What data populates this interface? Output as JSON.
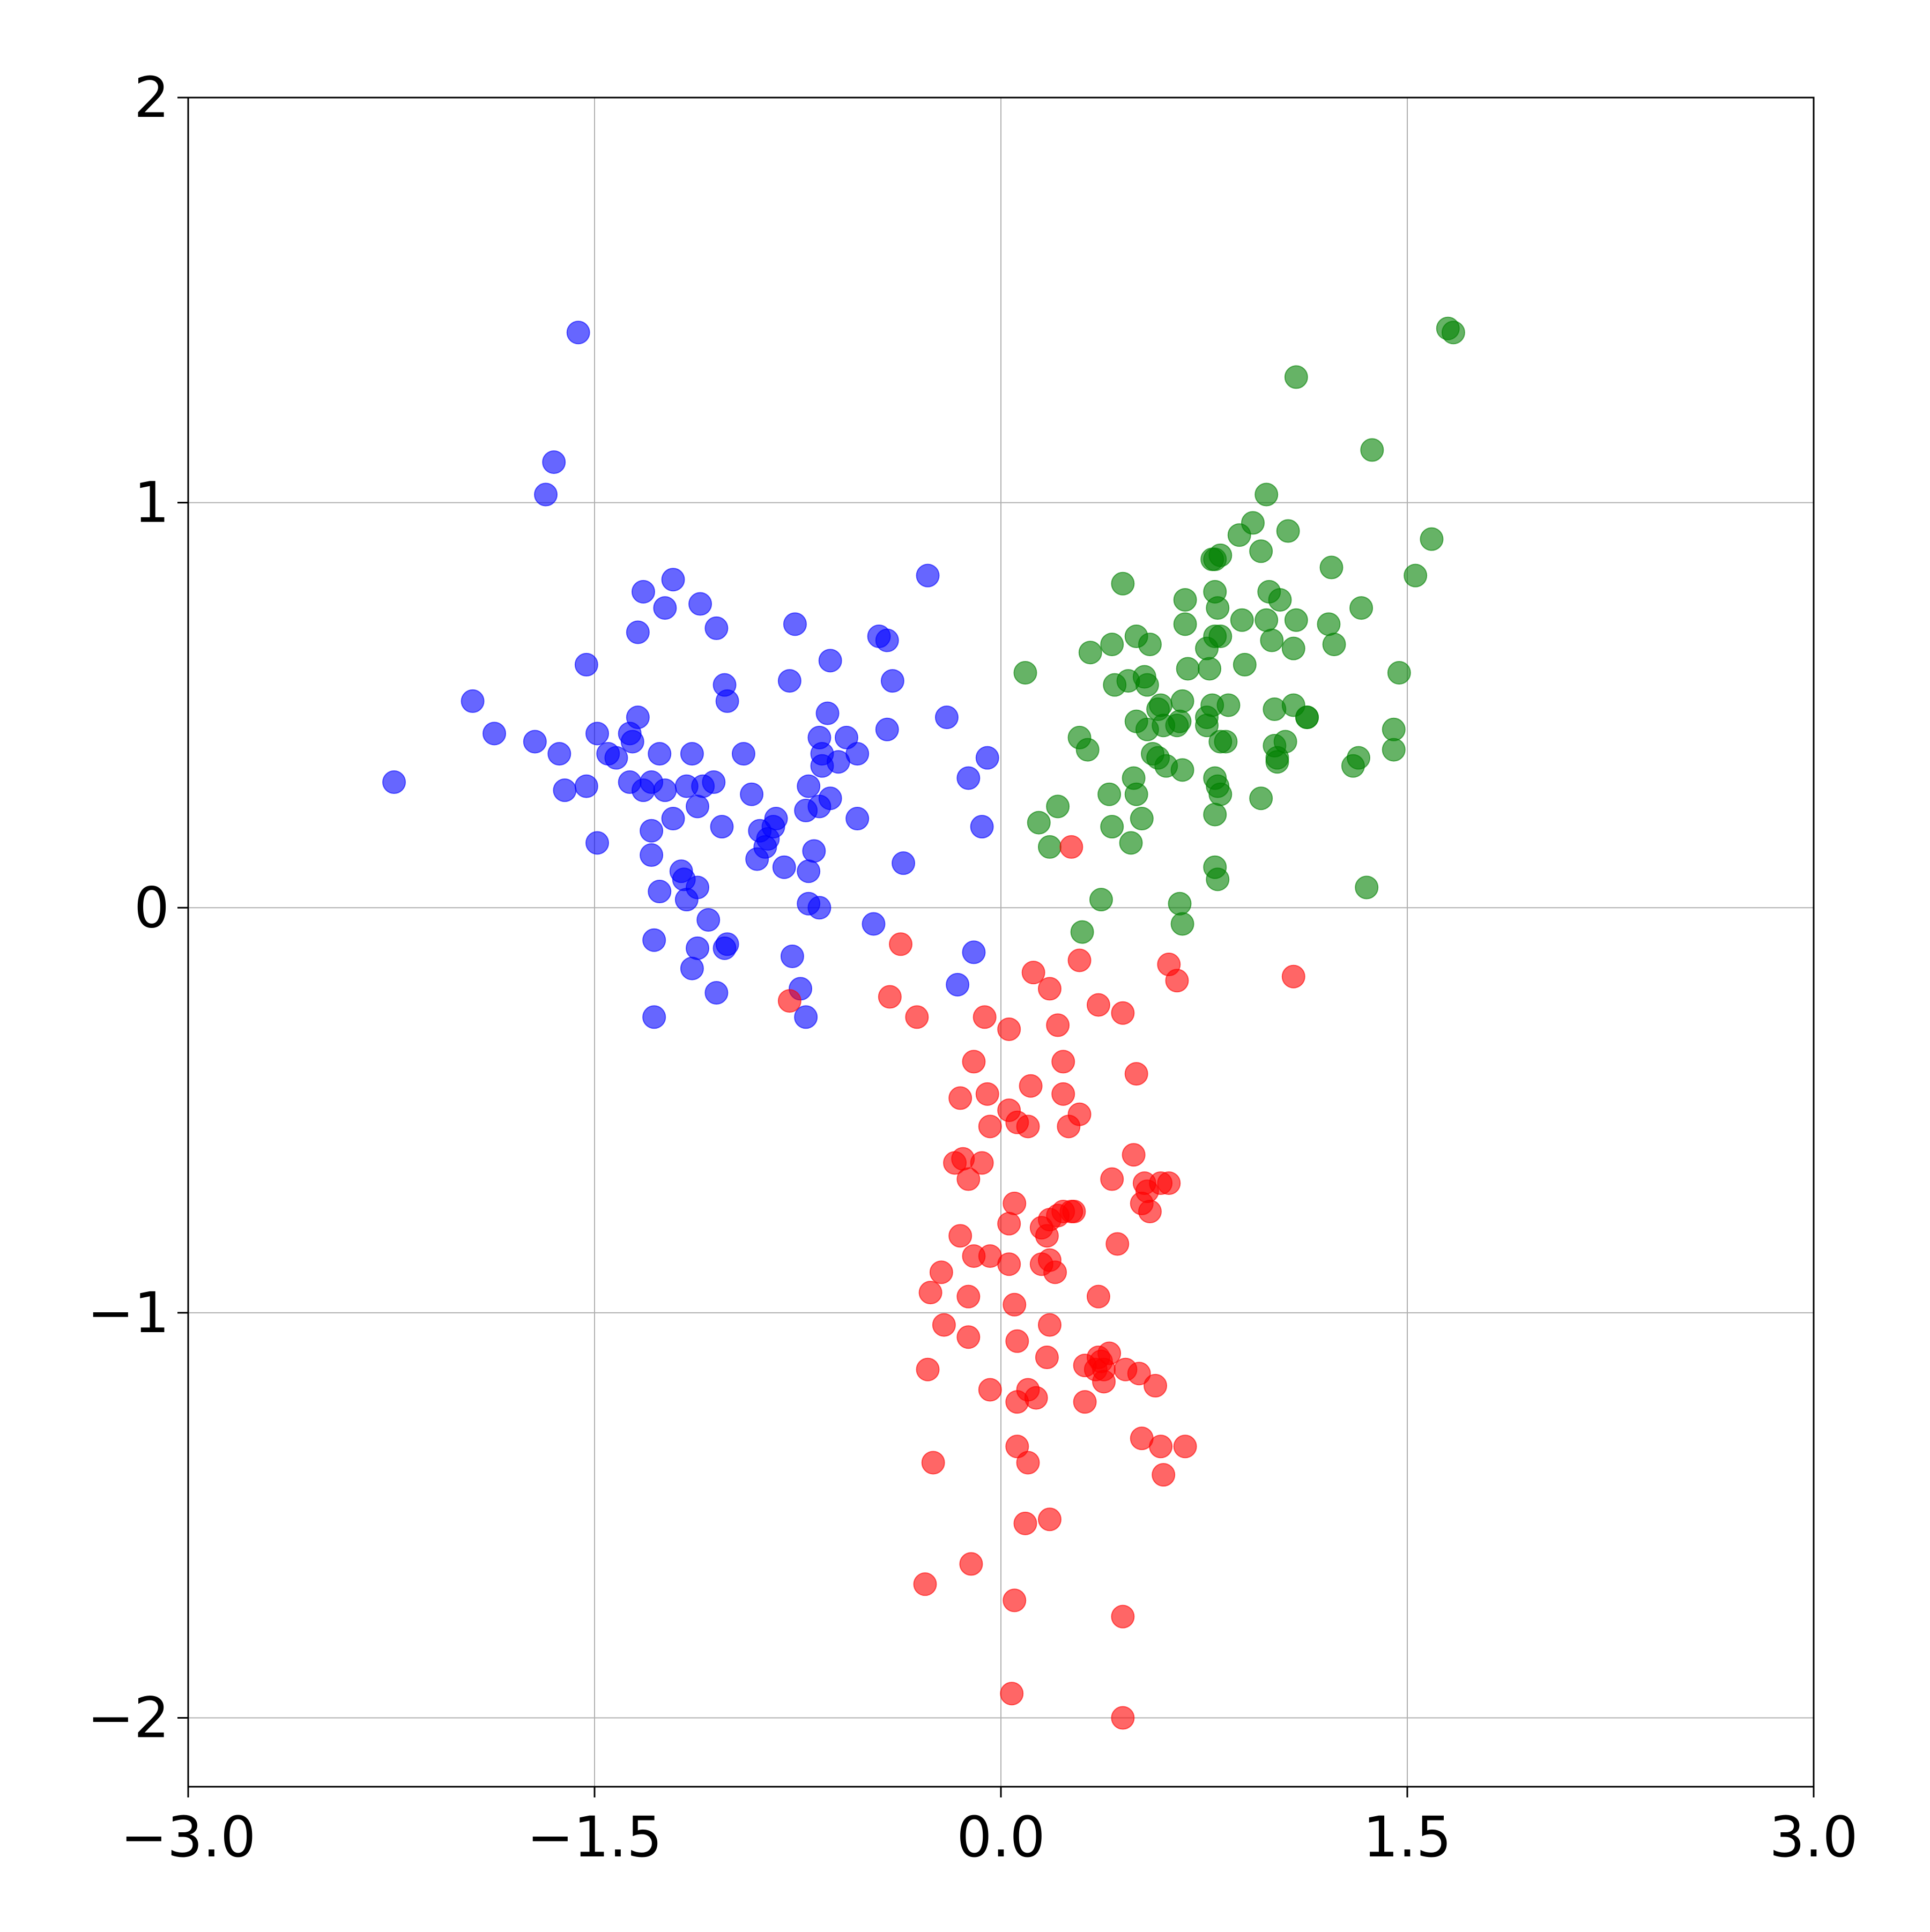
{
  "chart_data": {
    "type": "scatter",
    "xlim": [
      -3,
      3
    ],
    "ylim": [
      -2.17,
      2
    ],
    "xticks": [
      {
        "value": -3,
        "label": "−3.0"
      },
      {
        "value": -1.5,
        "label": "−1.5"
      },
      {
        "value": 0,
        "label": "0.0"
      },
      {
        "value": 1.5,
        "label": "1.5"
      },
      {
        "value": 3,
        "label": "3.0"
      }
    ],
    "yticks": [
      {
        "value": -2,
        "label": "−2"
      },
      {
        "value": -1,
        "label": "−1"
      },
      0,
      1,
      2
    ],
    "grid": true,
    "alpha": 0.6,
    "series": [
      {
        "color": "blue",
        "x": [
          -1.56,
          -1.65,
          -1.68,
          -0.27,
          -1.21,
          -1.32,
          -1.24,
          -1.11,
          -1.05,
          -1.34,
          -0.76,
          -0.45,
          -0.42,
          -1.53,
          -0.63,
          -1.02,
          -0.78,
          -0.4,
          -1.01,
          -1.95,
          -0.2,
          -1.34,
          -0.64,
          -0.42,
          -1.87,
          -1.49,
          -1.37,
          -1.72,
          -1.36,
          -0.67,
          -0.57,
          -1.63,
          -1.45,
          -1.42,
          -1.26,
          -1.14,
          -0.95,
          -0.66,
          -0.53,
          -0.05,
          -0.66,
          -0.6,
          -2.24,
          -0.12,
          -1.53,
          -1.37,
          -1.32,
          -1.29,
          -1.24,
          -1.16,
          -1.1,
          -1.06,
          -0.92,
          -0.71,
          -1.61,
          -0.63,
          -1.12,
          -0.67,
          -0.72,
          -1.21,
          -0.53,
          -0.83,
          -0.84,
          -0.07,
          -1.29,
          -1.03,
          -0.89,
          -0.86,
          -0.87,
          -1.49,
          -0.69,
          -1.29,
          -0.9,
          -0.36,
          -0.8,
          -1.18,
          -0.71,
          -1.17,
          -1.12,
          -1.26,
          -1.16,
          -0.71,
          -0.67,
          -1.08,
          -0.47,
          -1.01,
          -1.02,
          -1.28,
          -1.12,
          -0.77,
          -0.1,
          -1.14,
          -0.74,
          -0.16,
          -1.05,
          -1.28,
          -0.72
        ],
        "y": [
          1.42,
          1.1,
          1.02,
          0.82,
          0.81,
          0.78,
          0.74,
          0.75,
          0.69,
          0.68,
          0.7,
          0.67,
          0.66,
          0.6,
          0.61,
          0.55,
          0.56,
          0.56,
          0.51,
          0.51,
          0.47,
          0.47,
          0.48,
          0.44,
          0.43,
          0.43,
          0.43,
          0.41,
          0.41,
          0.42,
          0.42,
          0.38,
          0.38,
          0.37,
          0.38,
          0.38,
          0.38,
          0.38,
          0.38,
          0.37,
          0.35,
          0.36,
          0.31,
          0.32,
          0.3,
          0.31,
          0.29,
          0.31,
          0.29,
          0.3,
          0.3,
          0.31,
          0.28,
          0.3,
          0.29,
          0.27,
          0.25,
          0.25,
          0.24,
          0.22,
          0.22,
          0.22,
          0.2,
          0.2,
          0.19,
          0.2,
          0.19,
          0.17,
          0.15,
          0.16,
          0.14,
          0.13,
          0.12,
          0.11,
          0.1,
          0.09,
          0.09,
          0.07,
          0.05,
          0.04,
          0.02,
          0.01,
          0.0,
          -0.03,
          -0.04,
          -0.09,
          -0.1,
          -0.08,
          -0.1,
          -0.12,
          -0.11,
          -0.15,
          -0.2,
          -0.19,
          -0.21,
          -0.27,
          -0.27
        ]
      },
      {
        "color": "green",
        "x": [
          1.65,
          1.67,
          1.09,
          1.37,
          0.98,
          1.59,
          1.06,
          0.93,
          0.88,
          0.96,
          0.81,
          0.78,
          0.79,
          1.22,
          1.53,
          0.45,
          0.99,
          0.79,
          1.03,
          0.68,
          1.33,
          0.8,
          0.89,
          0.98,
          1.09,
          0.68,
          1.21,
          0.79,
          0.5,
          0.81,
          1.0,
          0.41,
          0.55,
          1.23,
          1.08,
          0.76,
          0.33,
          0.09,
          1.47,
          0.69,
          0.77,
          0.9,
          0.53,
          0.47,
          0.42,
          0.54,
          0.67,
          0.78,
          0.84,
          0.59,
          0.58,
          1.01,
          1.08,
          1.13,
          1.13,
          0.76,
          0.5,
          0.66,
          0.6,
          0.76,
          0.54,
          0.65,
          1.45,
          0.29,
          0.83,
          1.05,
          0.81,
          0.32,
          1.01,
          1.45,
          0.56,
          0.58,
          1.02,
          1.32,
          0.61,
          1.02,
          0.67,
          1.3,
          0.49,
          0.79,
          0.8,
          0.4,
          0.5,
          0.81,
          0.96,
          0.21,
          0.52,
          0.79,
          0.14,
          0.41,
          0.18,
          0.48,
          0.79,
          0.8,
          1.35,
          0.37,
          0.66,
          0.67,
          0.3
        ],
        "y": [
          1.43,
          1.42,
          1.31,
          1.13,
          1.02,
          0.91,
          0.93,
          0.95,
          0.92,
          0.88,
          0.87,
          0.86,
          0.86,
          0.84,
          0.82,
          0.8,
          0.78,
          0.78,
          0.76,
          0.76,
          0.74,
          0.74,
          0.71,
          0.71,
          0.71,
          0.7,
          0.7,
          0.67,
          0.67,
          0.67,
          0.66,
          0.65,
          0.65,
          0.65,
          0.64,
          0.64,
          0.63,
          0.58,
          0.58,
          0.59,
          0.59,
          0.6,
          0.57,
          0.56,
          0.55,
          0.55,
          0.51,
          0.5,
          0.5,
          0.5,
          0.49,
          0.49,
          0.5,
          0.47,
          0.47,
          0.47,
          0.46,
          0.46,
          0.45,
          0.45,
          0.44,
          0.45,
          0.44,
          0.42,
          0.41,
          0.41,
          0.41,
          0.39,
          0.4,
          0.39,
          0.38,
          0.37,
          0.37,
          0.37,
          0.35,
          0.36,
          0.34,
          0.35,
          0.32,
          0.32,
          0.3,
          0.28,
          0.28,
          0.28,
          0.27,
          0.25,
          0.22,
          0.23,
          0.21,
          0.2,
          0.15,
          0.16,
          0.1,
          0.07,
          0.05,
          0.02,
          0.01,
          -0.04,
          -0.06
        ]
      },
      {
        "color": "red",
        "x": [
          0.26,
          -0.37,
          1.08,
          0.62,
          0.65,
          0.29,
          0.12,
          0.18,
          -0.41,
          -0.78,
          0.36,
          -0.31,
          -0.06,
          0.45,
          0.03,
          0.21,
          0.23,
          -0.1,
          0.5,
          0.11,
          -0.15,
          -0.05,
          0.23,
          0.03,
          0.29,
          0.06,
          0.1,
          -0.04,
          0.25,
          0.49,
          -0.14,
          -0.17,
          -0.07,
          -0.12,
          0.41,
          0.53,
          0.59,
          0.62,
          0.54,
          0.52,
          0.55,
          0.05,
          0.23,
          0.26,
          0.27,
          0.21,
          0.18,
          0.15,
          0.03,
          -0.15,
          0.17,
          0.43,
          -0.1,
          -0.04,
          0.15,
          0.18,
          0.03,
          -0.22,
          0.2,
          -0.26,
          0.36,
          -0.12,
          0.05,
          -0.21,
          0.18,
          -0.12,
          0.06,
          0.4,
          0.36,
          0.17,
          -0.27,
          0.37,
          0.31,
          0.35,
          0.38,
          0.46,
          0.51,
          0.38,
          0.57,
          -0.04,
          0.1,
          0.13,
          0.31,
          0.06,
          0.52,
          0.59,
          0.68,
          0.06,
          -0.25,
          0.1,
          0.6,
          0.18,
          0.09,
          -0.11,
          -0.28,
          0.05,
          0.45,
          0.04,
          0.45
        ],
        "y": [
          0.15,
          -0.09,
          -0.17,
          -0.14,
          -0.18,
          -0.13,
          -0.16,
          -0.2,
          -0.22,
          -0.23,
          -0.24,
          -0.27,
          -0.27,
          -0.26,
          -0.3,
          -0.29,
          -0.38,
          -0.38,
          -0.41,
          -0.44,
          -0.47,
          -0.46,
          -0.46,
          -0.5,
          -0.51,
          -0.53,
          -0.54,
          -0.54,
          -0.54,
          -0.61,
          -0.62,
          -0.63,
          -0.63,
          -0.67,
          -0.67,
          -0.68,
          -0.68,
          -0.68,
          -0.7,
          -0.73,
          -0.75,
          -0.73,
          -0.75,
          -0.75,
          -0.75,
          -0.76,
          -0.77,
          -0.79,
          -0.78,
          -0.81,
          -0.81,
          -0.83,
          -0.86,
          -0.86,
          -0.88,
          -0.87,
          -0.88,
          -0.9,
          -0.9,
          -0.95,
          -0.96,
          -0.96,
          -0.98,
          -1.03,
          -1.03,
          -1.06,
          -1.07,
          -1.1,
          -1.11,
          -1.11,
          -1.14,
          -1.12,
          -1.13,
          -1.14,
          -1.14,
          -1.14,
          -1.15,
          -1.17,
          -1.18,
          -1.19,
          -1.19,
          -1.21,
          -1.22,
          -1.22,
          -1.31,
          -1.33,
          -1.33,
          -1.33,
          -1.37,
          -1.37,
          -1.4,
          -1.51,
          -1.52,
          -1.62,
          -1.67,
          -1.71,
          -1.75,
          -1.94,
          -2.0
        ]
      }
    ]
  }
}
